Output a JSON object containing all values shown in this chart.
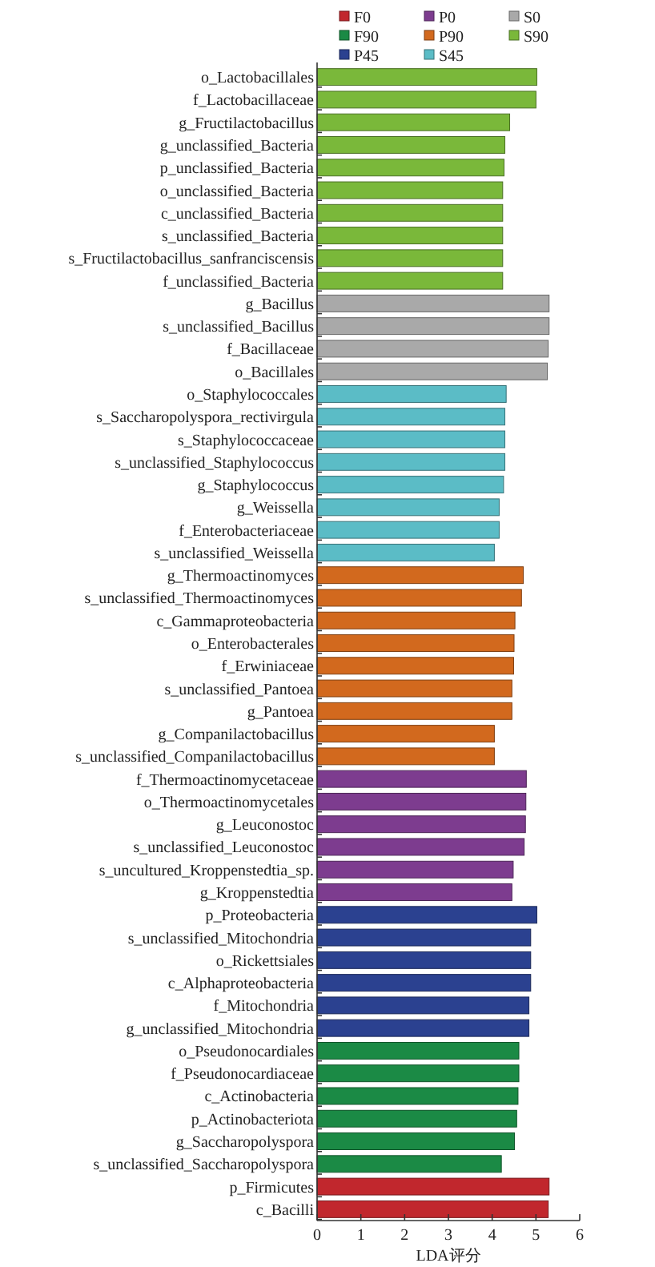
{
  "chart_data": {
    "type": "bar",
    "orientation": "horizontal",
    "xlabel": "LDA评分",
    "legend": "top",
    "categories": [
      "o_Lactobacillales",
      "f_Lactobacillaceae",
      "g_Fructilactobacillus",
      "g_unclassified_Bacteria",
      "p_unclassified_Bacteria",
      "o_unclassified_Bacteria",
      "c_unclassified_Bacteria",
      "s_unclassified_Bacteria",
      "s_Fructilactobacillus_sanfranciscensis",
      "f_unclassified_Bacteria",
      "g_Bacillus",
      "s_unclassified_Bacillus",
      "f_Bacillaceae",
      "o_Bacillales",
      "o_Staphylococcales",
      "s_Saccharopolyspora_rectivirgula",
      "s_Staphylococcaceae",
      "s_unclassified_Staphylococcus",
      "g_Staphylococcus",
      "g_Weissella",
      "f_Enterobacteriaceae",
      "s_unclassified_Weissella",
      "g_Thermoactinomyces",
      "s_unclassified_Thermoactinomyces",
      "c_Gammaproteobacteria",
      "o_Enterobacterales",
      "f_Erwiniaceae",
      "s_unclassified_Pantoea",
      "g_Pantoea",
      "g_Companilactobacillus",
      "s_unclassified_Companilactobacillus",
      "f_Thermoactinomycetaceae",
      "o_Thermoactinomycetales",
      "g_Leuconostoc",
      "s_unclassified_Leuconostoc",
      "s_uncultured_Kroppenstedtia_sp.",
      "g_Kroppenstedtia",
      "p_Proteobacteria",
      "s_unclassified_Mitochondria",
      "o_Rickettsiales",
      "c_Alphaproteobacteria",
      "f_Mitochondria",
      "g_unclassified_Mitochondria",
      "o_Pseudonocardiales",
      "f_Pseudonocardiaceae",
      "c_Actinobacteria",
      "p_Actinobacteriota",
      "g_Saccharopolyspora",
      "s_unclassified_Saccharopolyspora",
      "p_Firmicutes",
      "c_Bacilli"
    ],
    "series": [
      {
        "name": "F0",
        "color": "#c1272d",
        "values": [
          null,
          null,
          null,
          null,
          null,
          null,
          null,
          null,
          null,
          null,
          null,
          null,
          null,
          null,
          null,
          null,
          null,
          null,
          null,
          null,
          null,
          null,
          null,
          null,
          null,
          null,
          null,
          null,
          null,
          null,
          null,
          null,
          null,
          null,
          null,
          null,
          null,
          null,
          null,
          null,
          null,
          null,
          null,
          null,
          null,
          null,
          null,
          null,
          null,
          5.3,
          5.28
        ]
      },
      {
        "name": "P0",
        "color": "#7d3c8f",
        "values": [
          null,
          null,
          null,
          null,
          null,
          null,
          null,
          null,
          null,
          null,
          null,
          null,
          null,
          null,
          null,
          null,
          null,
          null,
          null,
          null,
          null,
          null,
          null,
          null,
          null,
          null,
          null,
          null,
          null,
          null,
          null,
          4.78,
          4.77,
          4.76,
          4.73,
          4.48,
          4.45,
          null,
          null,
          null,
          null,
          null,
          null,
          null,
          null,
          null,
          null,
          null,
          null,
          null,
          null
        ]
      },
      {
        "name": "S0",
        "color": "#a9a9a9",
        "values": [
          null,
          null,
          null,
          null,
          null,
          null,
          null,
          null,
          null,
          null,
          5.3,
          5.3,
          5.28,
          5.26,
          null,
          null,
          null,
          null,
          null,
          null,
          null,
          null,
          null,
          null,
          null,
          null,
          null,
          null,
          null,
          null,
          null,
          null,
          null,
          null,
          null,
          null,
          null,
          null,
          null,
          null,
          null,
          null,
          null,
          null,
          null,
          null,
          null,
          null,
          null,
          null,
          null
        ]
      },
      {
        "name": "F90",
        "color": "#1b8a45",
        "values": [
          null,
          null,
          null,
          null,
          null,
          null,
          null,
          null,
          null,
          null,
          null,
          null,
          null,
          null,
          null,
          null,
          null,
          null,
          null,
          null,
          null,
          null,
          null,
          null,
          null,
          null,
          null,
          null,
          null,
          null,
          null,
          null,
          null,
          null,
          null,
          null,
          null,
          null,
          null,
          null,
          null,
          null,
          null,
          4.61,
          4.61,
          4.59,
          4.56,
          4.51,
          4.21,
          null,
          null
        ]
      },
      {
        "name": "P90",
        "color": "#d2691e",
        "values": [
          null,
          null,
          null,
          null,
          null,
          null,
          null,
          null,
          null,
          null,
          null,
          null,
          null,
          null,
          null,
          null,
          null,
          null,
          null,
          null,
          null,
          null,
          4.71,
          4.67,
          4.52,
          4.5,
          4.49,
          4.45,
          4.45,
          4.05,
          4.05,
          null,
          null,
          null,
          null,
          null,
          null,
          null,
          null,
          null,
          null,
          null,
          null,
          null,
          null,
          null,
          null,
          null,
          null,
          null,
          null
        ]
      },
      {
        "name": "S90",
        "color": "#7ab83a",
        "values": [
          5.02,
          5.0,
          4.4,
          4.29,
          4.27,
          4.24,
          4.24,
          4.24,
          4.24,
          4.24,
          null,
          null,
          null,
          null,
          null,
          null,
          null,
          null,
          null,
          null,
          null,
          null,
          null,
          null,
          null,
          null,
          null,
          null,
          null,
          null,
          null,
          null,
          null,
          null,
          null,
          null,
          null,
          null,
          null,
          null,
          null,
          null,
          null,
          null,
          null,
          null,
          null,
          null,
          null,
          null,
          null
        ]
      },
      {
        "name": "P45",
        "color": "#2b4190",
        "values": [
          null,
          null,
          null,
          null,
          null,
          null,
          null,
          null,
          null,
          null,
          null,
          null,
          null,
          null,
          null,
          null,
          null,
          null,
          null,
          null,
          null,
          null,
          null,
          null,
          null,
          null,
          null,
          null,
          null,
          null,
          null,
          null,
          null,
          null,
          null,
          null,
          null,
          5.02,
          4.88,
          4.88,
          4.88,
          4.84,
          4.84,
          null,
          null,
          null,
          null,
          null,
          null,
          null,
          null
        ]
      },
      {
        "name": "S45",
        "color": "#5bbcc6",
        "values": [
          null,
          null,
          null,
          null,
          null,
          null,
          null,
          null,
          null,
          null,
          null,
          null,
          null,
          null,
          4.32,
          4.29,
          4.29,
          4.29,
          4.26,
          4.16,
          4.16,
          4.05,
          null,
          null,
          null,
          null,
          null,
          null,
          null,
          null,
          null,
          null,
          null,
          null,
          null,
          null,
          null,
          null,
          null,
          null,
          null,
          null,
          null,
          null,
          null,
          null,
          null,
          null,
          null,
          null,
          null
        ]
      }
    ],
    "xlim": [
      0,
      6
    ],
    "xticks": [
      0,
      1,
      2,
      3,
      4,
      5,
      6
    ]
  }
}
